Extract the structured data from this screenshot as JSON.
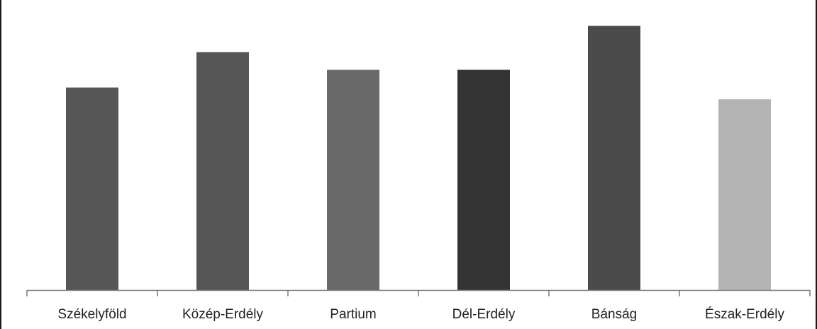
{
  "chart_data": {
    "type": "bar",
    "title": "",
    "xlabel": "",
    "ylabel": "",
    "categories": [
      "Székelyföld",
      "Közép-Erdély",
      "Partium",
      "Dél-Erdély",
      "Bánság",
      "Észak-Erdély"
    ],
    "values": [
      69,
      81,
      75,
      75,
      90,
      65
    ],
    "ylim": [
      0,
      100
    ],
    "grid": false,
    "legend": "none",
    "bar_colors": [
      "#565656",
      "#555555",
      "#6a6a6a",
      "#333333",
      "#4b4b4b",
      "#b4b4b4"
    ]
  }
}
